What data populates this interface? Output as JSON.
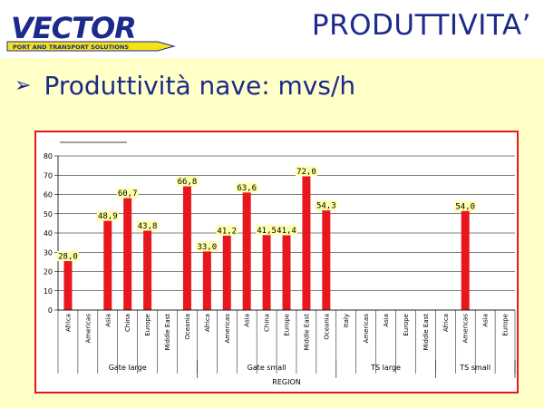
{
  "logo": {
    "name": "VECTOR",
    "tagline": "PORT AND TRANSPORT SOLUTIONS"
  },
  "slide": {
    "title": "PRODUTTIVITA’",
    "bullet": "Produttività nave: mvs/h"
  },
  "colors": {
    "bar": "#e8161d",
    "title": "#1c2a8a",
    "background": "#ffffc8",
    "label_bg": "#ffffaa"
  },
  "chart_data": {
    "type": "bar",
    "xlabel": "REGION",
    "ylabel": "",
    "ylim": [
      0,
      80
    ],
    "yticks": [
      0,
      10,
      20,
      30,
      40,
      50,
      60,
      70,
      80
    ],
    "grid": true,
    "groups": [
      {
        "name": "Gate large",
        "categories": [
          "Africa",
          "Americas",
          "Asia",
          "China",
          "Europe",
          "Middle East",
          "Oceania"
        ],
        "values": [
          28.0,
          null,
          48.9,
          60.7,
          43.8,
          null,
          66.8
        ],
        "labels": [
          "28,0",
          "",
          "48,9",
          "60,7",
          "43,8",
          "",
          "66,8"
        ]
      },
      {
        "name": "Gate small",
        "categories": [
          "Africa",
          "Americas",
          "Asia",
          "China",
          "Europe",
          "Middle East",
          "Oceania"
        ],
        "values": [
          33.0,
          41.2,
          63.6,
          41.5,
          41.4,
          72.0,
          54.3
        ],
        "labels": [
          "33,0",
          "41,2",
          "63,6",
          "41,5",
          "41,4",
          "72,0",
          "54,3"
        ]
      },
      {
        "name": "TS large",
        "categories": [
          "Italy",
          "Americas",
          "Asia",
          "Europe",
          "Middle East"
        ],
        "values": [
          null,
          null,
          null,
          null,
          null
        ],
        "labels": [
          "",
          "",
          "",
          "",
          ""
        ]
      },
      {
        "name": "TS small",
        "categories": [
          "Africa",
          "Americas",
          "Asia",
          "Europe"
        ],
        "values": [
          null,
          54.0,
          null,
          null
        ],
        "labels": [
          "",
          "54,0",
          "",
          ""
        ]
      }
    ]
  }
}
